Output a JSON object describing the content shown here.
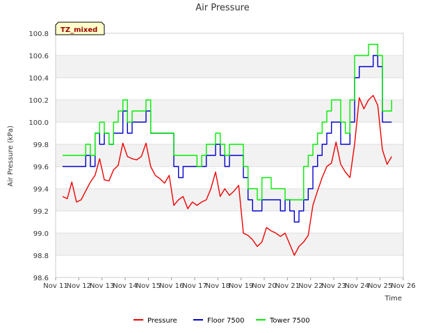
{
  "chart_data": {
    "type": "line",
    "title": "Air Pressure",
    "xlabel": "Time",
    "ylabel": "Air Pressure (kPa)",
    "annotation": "TZ_mixed",
    "ylim": [
      98.6,
      100.8
    ],
    "yticks": [
      "98.6",
      "98.8",
      "99.0",
      "99.2",
      "99.4",
      "99.6",
      "99.8",
      "100.0",
      "100.2",
      "100.4",
      "100.6",
      "100.8"
    ],
    "xlim": [
      11,
      26
    ],
    "xtick_values": [
      11,
      12,
      13,
      14,
      15,
      16,
      17,
      18,
      19,
      20,
      21,
      22,
      23,
      24,
      25,
      26
    ],
    "xtick_labels": [
      "Nov 11",
      "Nov 12",
      "Nov 13",
      "Nov 14",
      "Nov 15",
      "Nov 16",
      "Nov 17",
      "Nov 18",
      "Nov 19",
      "Nov 20",
      "Nov 21",
      "Nov 22",
      "Nov 23",
      "Nov 24",
      "Nov 25",
      "Nov 26"
    ],
    "grid": true,
    "legend_position": "bottom",
    "series": [
      {
        "name": "Pressure",
        "color": "#ee0000",
        "x": [
          11.3,
          11.5,
          11.7,
          11.9,
          12.1,
          12.3,
          12.5,
          12.7,
          12.9,
          13.1,
          13.3,
          13.5,
          13.7,
          13.9,
          14.1,
          14.3,
          14.5,
          14.7,
          14.9,
          15.1,
          15.3,
          15.5,
          15.7,
          15.9,
          16.1,
          16.3,
          16.5,
          16.7,
          16.9,
          17.1,
          17.3,
          17.5,
          17.7,
          17.9,
          18.1,
          18.3,
          18.5,
          18.7,
          18.9,
          19.1,
          19.3,
          19.5,
          19.7,
          19.9,
          20.1,
          20.3,
          20.5,
          20.7,
          20.9,
          21.1,
          21.3,
          21.5,
          21.7,
          21.9,
          22.1,
          22.3,
          22.5,
          22.7,
          22.9,
          23.1,
          23.3,
          23.5,
          23.7,
          23.9,
          24.1,
          24.3,
          24.5,
          24.7,
          24.9,
          25.1,
          25.3,
          25.5
        ],
        "y": [
          99.33,
          99.31,
          99.46,
          99.28,
          99.3,
          99.38,
          99.46,
          99.52,
          99.67,
          99.48,
          99.47,
          99.57,
          99.61,
          99.81,
          99.69,
          99.67,
          99.66,
          99.69,
          99.81,
          99.6,
          99.52,
          99.49,
          99.45,
          99.52,
          99.25,
          99.3,
          99.33,
          99.22,
          99.28,
          99.25,
          99.28,
          99.3,
          99.4,
          99.55,
          99.33,
          99.4,
          99.34,
          99.38,
          99.43,
          99.0,
          98.98,
          98.94,
          98.88,
          98.92,
          99.05,
          99.02,
          99.0,
          98.97,
          99.0,
          98.9,
          98.8,
          98.88,
          98.92,
          98.98,
          99.25,
          99.38,
          99.5,
          99.6,
          99.63,
          99.82,
          99.62,
          99.55,
          99.5,
          99.8,
          100.22,
          100.12,
          100.2,
          100.24,
          100.15,
          99.75,
          99.62,
          99.69
        ]
      },
      {
        "name": "Floor 7500",
        "color": "#0000cc",
        "x": [
          11.3,
          11.7,
          11.9,
          12.1,
          12.3,
          12.5,
          12.7,
          12.9,
          13.1,
          13.3,
          13.5,
          13.7,
          13.9,
          14.1,
          14.3,
          14.5,
          14.7,
          14.9,
          15.1,
          15.3,
          15.5,
          15.7,
          15.9,
          16.1,
          16.3,
          16.5,
          16.7,
          16.9,
          17.1,
          17.3,
          17.5,
          17.7,
          17.9,
          18.1,
          18.3,
          18.5,
          18.7,
          18.9,
          19.1,
          19.3,
          19.5,
          19.7,
          19.9,
          20.1,
          20.3,
          20.5,
          20.7,
          20.9,
          21.1,
          21.3,
          21.5,
          21.7,
          21.9,
          22.1,
          22.3,
          22.5,
          22.7,
          22.9,
          23.1,
          23.3,
          23.5,
          23.7,
          23.9,
          24.1,
          24.3,
          24.5,
          24.7,
          24.9,
          25.1,
          25.3,
          25.5
        ],
        "y": [
          99.6,
          99.6,
          99.6,
          99.6,
          99.7,
          99.6,
          99.9,
          99.8,
          99.9,
          99.8,
          99.9,
          99.9,
          100.1,
          99.9,
          100.0,
          100.0,
          100.0,
          100.1,
          99.9,
          99.9,
          99.9,
          99.9,
          99.9,
          99.6,
          99.5,
          99.6,
          99.6,
          99.6,
          99.6,
          99.6,
          99.7,
          99.7,
          99.8,
          99.7,
          99.6,
          99.7,
          99.7,
          99.7,
          99.5,
          99.3,
          99.2,
          99.2,
          99.3,
          99.3,
          99.3,
          99.3,
          99.2,
          99.3,
          99.2,
          99.1,
          99.2,
          99.3,
          99.4,
          99.6,
          99.7,
          99.8,
          99.9,
          100.0,
          100.0,
          99.8,
          99.8,
          100.0,
          100.4,
          100.5,
          100.5,
          100.5,
          100.6,
          100.5,
          100.0,
          100.0,
          100.0
        ]
      },
      {
        "name": "Tower 7500",
        "color": "#00ee00",
        "x": [
          11.3,
          11.7,
          11.9,
          12.1,
          12.3,
          12.5,
          12.7,
          12.9,
          13.1,
          13.3,
          13.5,
          13.7,
          13.9,
          14.1,
          14.3,
          14.5,
          14.7,
          14.9,
          15.1,
          15.3,
          15.5,
          15.7,
          15.9,
          16.1,
          16.3,
          16.5,
          16.7,
          16.9,
          17.1,
          17.3,
          17.5,
          17.7,
          17.9,
          18.1,
          18.3,
          18.5,
          18.7,
          18.9,
          19.1,
          19.3,
          19.5,
          19.7,
          19.9,
          20.1,
          20.3,
          20.5,
          20.7,
          20.9,
          21.1,
          21.3,
          21.5,
          21.7,
          21.9,
          22.1,
          22.3,
          22.5,
          22.7,
          22.9,
          23.1,
          23.3,
          23.5,
          23.7,
          23.9,
          24.1,
          24.3,
          24.5,
          24.7,
          24.9,
          25.1,
          25.3,
          25.5
        ],
        "y": [
          99.7,
          99.7,
          99.7,
          99.7,
          99.8,
          99.7,
          99.9,
          100.0,
          99.9,
          99.8,
          100.0,
          100.1,
          100.2,
          100.0,
          100.1,
          100.1,
          100.1,
          100.2,
          99.9,
          99.9,
          99.9,
          99.9,
          99.9,
          99.7,
          99.7,
          99.7,
          99.7,
          99.7,
          99.6,
          99.7,
          99.8,
          99.8,
          99.9,
          99.8,
          99.7,
          99.8,
          99.8,
          99.8,
          99.6,
          99.4,
          99.4,
          99.3,
          99.5,
          99.5,
          99.4,
          99.4,
          99.4,
          99.3,
          99.3,
          99.3,
          99.3,
          99.6,
          99.7,
          99.8,
          99.9,
          100.0,
          100.1,
          100.2,
          100.2,
          100.0,
          99.9,
          100.2,
          100.6,
          100.6,
          100.6,
          100.7,
          100.7,
          100.6,
          100.1,
          100.1,
          100.2
        ]
      }
    ]
  }
}
